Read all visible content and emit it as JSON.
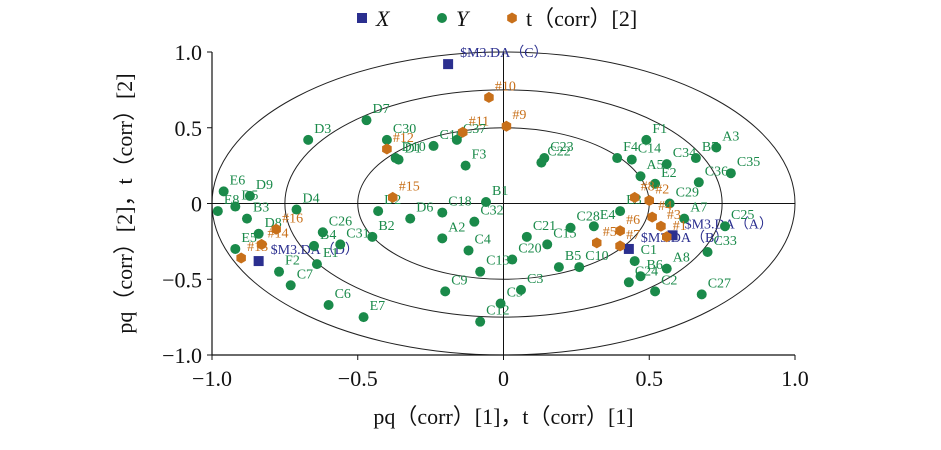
{
  "chart_data": {
    "type": "scatter",
    "title": "",
    "xlabel": "pq（corr）[1]，t（corr）[1]",
    "ylabel": "pq（corr）[2]，t（corr）[2]",
    "xlim": [
      -1.0,
      1.0
    ],
    "ylim": [
      -1.0,
      1.0
    ],
    "x_ticks": [
      "−1.0",
      "−0.5",
      "0",
      "0.5",
      "1.0"
    ],
    "y_ticks": [
      "1.0",
      "0.5",
      "0",
      "−0.5",
      "−1.0"
    ],
    "grid": false,
    "ellipses": [
      1.0,
      0.75,
      0.5
    ],
    "legend_position": "top",
    "legend": [
      {
        "symbol": "■",
        "label": "X",
        "color": "#2b2f8f"
      },
      {
        "symbol": "●",
        "label": "Y",
        "color": "#1a8a4a"
      },
      {
        "symbol": "⬢",
        "label": "t（corr）[2]",
        "color": "#c8701a"
      }
    ],
    "series": [
      {
        "name": "X",
        "color": "#2b2f8f",
        "points": [
          {
            "label": "$M3.DA（C）",
            "x": -0.19,
            "y": 0.92
          },
          {
            "label": "$M3.DA（D）",
            "x": -0.84,
            "y": -0.38
          },
          {
            "label": "$M3.DA（A）",
            "x": 0.58,
            "y": -0.21
          },
          {
            "label": "$M3.DA（B）",
            "x": 0.43,
            "y": -0.3
          }
        ]
      },
      {
        "name": "Y",
        "color": "#1a8a4a",
        "points": [
          {
            "label": "E6",
            "x": -0.96,
            "y": 0.08
          },
          {
            "label": "D9",
            "x": -0.87,
            "y": 0.05
          },
          {
            "label": "D5",
            "x": -0.92,
            "y": -0.02
          },
          {
            "label": "D4",
            "x": -0.71,
            "y": -0.04
          },
          {
            "label": "E8",
            "x": -0.98,
            "y": -0.05
          },
          {
            "label": "B3",
            "x": -0.88,
            "y": -0.1
          },
          {
            "label": "D8",
            "x": -0.84,
            "y": -0.2
          },
          {
            "label": "E5",
            "x": -0.92,
            "y": -0.3
          },
          {
            "label": "F2",
            "x": -0.77,
            "y": -0.45
          },
          {
            "label": "C7",
            "x": -0.73,
            "y": -0.54
          },
          {
            "label": "C6",
            "x": -0.6,
            "y": -0.67
          },
          {
            "label": "E7",
            "x": -0.48,
            "y": -0.75
          },
          {
            "label": "E1",
            "x": -0.64,
            "y": -0.4
          },
          {
            "label": "B4",
            "x": -0.65,
            "y": -0.28
          },
          {
            "label": "C26",
            "x": -0.62,
            "y": -0.19
          },
          {
            "label": "C31",
            "x": -0.56,
            "y": -0.27
          },
          {
            "label": "B2",
            "x": -0.45,
            "y": -0.22
          },
          {
            "label": "D2",
            "x": -0.43,
            "y": -0.05
          },
          {
            "label": "D6",
            "x": -0.32,
            "y": -0.1
          },
          {
            "label": "D3",
            "x": -0.67,
            "y": 0.42
          },
          {
            "label": "D7",
            "x": -0.47,
            "y": 0.55
          },
          {
            "label": "C30",
            "x": -0.4,
            "y": 0.42
          },
          {
            "label": "D10",
            "x": -0.37,
            "y": 0.3
          },
          {
            "label": "D1",
            "x": -0.36,
            "y": 0.29
          },
          {
            "label": "C16",
            "x": -0.24,
            "y": 0.38
          },
          {
            "label": "C37",
            "x": -0.16,
            "y": 0.42
          },
          {
            "label": "F3",
            "x": -0.13,
            "y": 0.25
          },
          {
            "label": "C18",
            "x": -0.21,
            "y": -0.06
          },
          {
            "label": "B1",
            "x": -0.06,
            "y": 0.01
          },
          {
            "label": "C32",
            "x": -0.1,
            "y": -0.12
          },
          {
            "label": "A2",
            "x": -0.21,
            "y": -0.23
          },
          {
            "label": "C4",
            "x": -0.12,
            "y": -0.31
          },
          {
            "label": "C9",
            "x": -0.2,
            "y": -0.58
          },
          {
            "label": "C13",
            "x": -0.08,
            "y": -0.45
          },
          {
            "label": "C12",
            "x": -0.08,
            "y": -0.78
          },
          {
            "label": "C5",
            "x": -0.01,
            "y": -0.66
          },
          {
            "label": "C3",
            "x": 0.06,
            "y": -0.57
          },
          {
            "label": "C20",
            "x": 0.03,
            "y": -0.37
          },
          {
            "label": "C21",
            "x": 0.08,
            "y": -0.22
          },
          {
            "label": "B5",
            "x": 0.19,
            "y": -0.42
          },
          {
            "label": "C15",
            "x": 0.15,
            "y": -0.27
          },
          {
            "label": "C28",
            "x": 0.23,
            "y": -0.16
          },
          {
            "label": "C23",
            "x": 0.14,
            "y": 0.3
          },
          {
            "label": "C22",
            "x": 0.13,
            "y": 0.27
          },
          {
            "label": "E4",
            "x": 0.31,
            "y": -0.15
          },
          {
            "label": "C10",
            "x": 0.26,
            "y": -0.42
          },
          {
            "label": "C24",
            "x": 0.43,
            "y": -0.52
          },
          {
            "label": "B6",
            "x": 0.47,
            "y": -0.48
          },
          {
            "label": "C2",
            "x": 0.52,
            "y": -0.58
          },
          {
            "label": "C1",
            "x": 0.45,
            "y": -0.38
          },
          {
            "label": "A8",
            "x": 0.56,
            "y": -0.43
          },
          {
            "label": "C27",
            "x": 0.68,
            "y": -0.6
          },
          {
            "label": "E3",
            "x": 0.4,
            "y": -0.05
          },
          {
            "label": "F4",
            "x": 0.39,
            "y": 0.3
          },
          {
            "label": "C14",
            "x": 0.44,
            "y": 0.29
          },
          {
            "label": "F1",
            "x": 0.49,
            "y": 0.42
          },
          {
            "label": "C34",
            "x": 0.56,
            "y": 0.26
          },
          {
            "label": "A5",
            "x": 0.47,
            "y": 0.18
          },
          {
            "label": "E2",
            "x": 0.52,
            "y": 0.13
          },
          {
            "label": "B7",
            "x": 0.66,
            "y": 0.3
          },
          {
            "label": "A3",
            "x": 0.73,
            "y": 0.37
          },
          {
            "label": "C35",
            "x": 0.78,
            "y": 0.2
          },
          {
            "label": "C36",
            "x": 0.67,
            "y": 0.14
          },
          {
            "label": "C29",
            "x": 0.57,
            "y": 0.0
          },
          {
            "label": "C25",
            "x": 0.76,
            "y": -0.15
          },
          {
            "label": "C33",
            "x": 0.7,
            "y": -0.32
          },
          {
            "label": "A7",
            "x": 0.62,
            "y": -0.1
          }
        ]
      },
      {
        "name": "t（corr）[2]",
        "color": "#c8701a",
        "points": [
          {
            "label": "#10",
            "x": -0.05,
            "y": 0.7
          },
          {
            "label": "#9",
            "x": 0.01,
            "y": 0.51
          },
          {
            "label": "#11",
            "x": -0.14,
            "y": 0.47
          },
          {
            "label": "#12",
            "x": -0.4,
            "y": 0.36
          },
          {
            "label": "#15",
            "x": -0.38,
            "y": 0.04
          },
          {
            "label": "#16",
            "x": -0.78,
            "y": -0.17
          },
          {
            "label": "#14",
            "x": -0.83,
            "y": -0.27
          },
          {
            "label": "#13",
            "x": -0.9,
            "y": -0.36
          },
          {
            "label": "#8",
            "x": 0.45,
            "y": 0.04
          },
          {
            "label": "#6",
            "x": 0.4,
            "y": -0.18
          },
          {
            "label": "#5",
            "x": 0.32,
            "y": -0.26
          },
          {
            "label": "#7",
            "x": 0.4,
            "y": -0.28
          },
          {
            "label": "#4",
            "x": 0.51,
            "y": -0.09
          },
          {
            "label": "#3",
            "x": 0.54,
            "y": -0.15
          },
          {
            "label": "#2",
            "x": 0.5,
            "y": 0.02
          },
          {
            "label": "#1",
            "x": 0.56,
            "y": -0.22
          }
        ]
      }
    ]
  }
}
